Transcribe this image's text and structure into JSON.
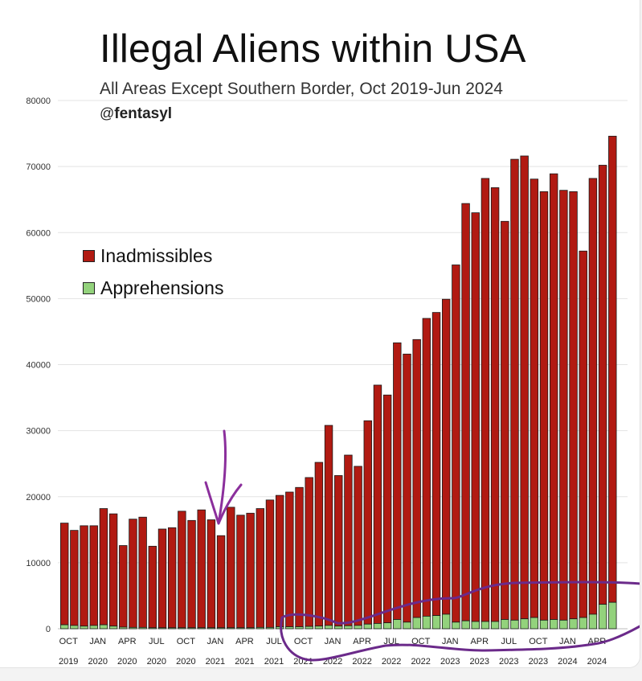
{
  "chart_data": {
    "type": "bar",
    "stacked": true,
    "title": "Illegal Aliens within USA",
    "subtitle": "All Areas Except Southern Border, Oct 2019-Jun 2024",
    "credit_prefix": "@",
    "credit_name": "fentasyl",
    "ylim": [
      0,
      80000
    ],
    "yticks": [
      "0",
      "10000",
      "20000",
      "30000",
      "40000",
      "50000",
      "60000",
      "70000",
      "80000"
    ],
    "ytick_values": [
      0,
      10000,
      20000,
      30000,
      40000,
      50000,
      60000,
      70000,
      80000
    ],
    "grid": true,
    "legend_position": "left-middle",
    "xtick_labels": [
      {
        "month": "OCT",
        "year": "2019"
      },
      {
        "month": "JAN",
        "year": "2020"
      },
      {
        "month": "APR",
        "year": "2020"
      },
      {
        "month": "JUL",
        "year": "2020"
      },
      {
        "month": "OCT",
        "year": "2020"
      },
      {
        "month": "JAN",
        "year": "2021"
      },
      {
        "month": "APR",
        "year": "2021"
      },
      {
        "month": "JUL",
        "year": "2021"
      },
      {
        "month": "OCT",
        "year": "2021"
      },
      {
        "month": "JAN",
        "year": "2022"
      },
      {
        "month": "APR",
        "year": "2022"
      },
      {
        "month": "JUL",
        "year": "2022"
      },
      {
        "month": "OCT",
        "year": "2022"
      },
      {
        "month": "JAN",
        "year": "2023"
      },
      {
        "month": "APR",
        "year": "2023"
      },
      {
        "month": "JUL",
        "year": "2023"
      },
      {
        "month": "OCT",
        "year": "2023"
      },
      {
        "month": "JAN",
        "year": "2024"
      },
      {
        "month": "APR",
        "year": "2024"
      }
    ],
    "series": [
      {
        "name": "Inadmissibles",
        "color": "#b11a12",
        "totals": [
          16000,
          14900,
          15600,
          15600,
          18200,
          17400,
          12600,
          16600,
          16900,
          12500,
          15100,
          15300,
          17800,
          16400,
          18000,
          16500,
          14100,
          18400,
          17200,
          17500,
          18200,
          19500,
          20200,
          20700,
          21400,
          22900,
          25200,
          30800,
          23200,
          26300,
          24600,
          31500,
          36900,
          35400,
          43300,
          41600,
          43800,
          47000,
          47900,
          49900,
          55100,
          64400,
          63000,
          68200,
          66800,
          61700,
          71100,
          71600,
          68100,
          66200,
          68900,
          66400,
          66200,
          57200,
          68200,
          70200,
          74600
        ]
      },
      {
        "name": "Apprehensions",
        "color": "#93d27c",
        "values": [
          600,
          500,
          400,
          500,
          600,
          400,
          250,
          200,
          200,
          150,
          150,
          150,
          150,
          150,
          150,
          150,
          150,
          150,
          150,
          150,
          200,
          200,
          300,
          300,
          300,
          350,
          400,
          500,
          400,
          450,
          500,
          700,
          800,
          900,
          1400,
          1000,
          1700,
          1900,
          2000,
          2200,
          1000,
          1200,
          1100,
          1100,
          1100,
          1400,
          1300,
          1500,
          1700,
          1300,
          1400,
          1300,
          1500,
          1700,
          2200,
          3700,
          4000
        ]
      }
    ]
  },
  "annotations": {
    "arrow_color": "#8b2f9c",
    "highlight_color": "#6b2a8a"
  }
}
